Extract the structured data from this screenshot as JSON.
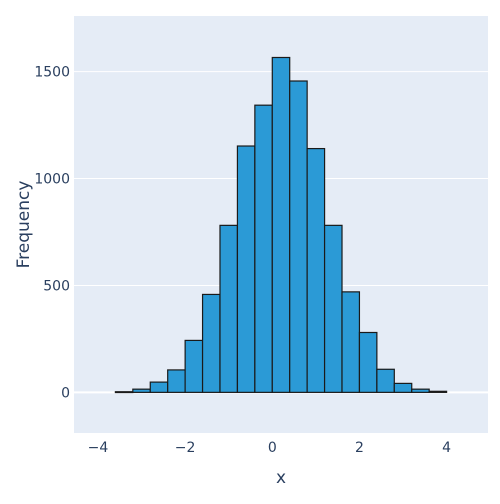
{
  "chart_data": {
    "type": "bar",
    "title": "",
    "xlabel": "x",
    "ylabel": "Frequency",
    "xlim": [
      -4.55,
      4.95
    ],
    "ylim": [
      -190,
      1760
    ],
    "xticks": [
      -4,
      -2,
      0,
      2,
      4
    ],
    "xtick_labels": [
      "−4",
      "−2",
      "0",
      "2",
      "4"
    ],
    "yticks": [
      0,
      500,
      1000,
      1500
    ],
    "ytick_labels": [
      "0",
      "500",
      "1000",
      "1500"
    ],
    "grid": true,
    "legend": "none",
    "bin_width": 0.4,
    "bins": [
      {
        "x0": -3.6,
        "x1": -3.2,
        "count": 3
      },
      {
        "x0": -3.2,
        "x1": -2.8,
        "count": 15
      },
      {
        "x0": -2.8,
        "x1": -2.4,
        "count": 48
      },
      {
        "x0": -2.4,
        "x1": -2.0,
        "count": 105
      },
      {
        "x0": -2.0,
        "x1": -1.6,
        "count": 243
      },
      {
        "x0": -1.6,
        "x1": -1.2,
        "count": 458
      },
      {
        "x0": -1.2,
        "x1": -0.8,
        "count": 781
      },
      {
        "x0": -0.8,
        "x1": -0.4,
        "count": 1152
      },
      {
        "x0": -0.4,
        "x1": 0.0,
        "count": 1343
      },
      {
        "x0": 0.0,
        "x1": 0.4,
        "count": 1566
      },
      {
        "x0": 0.4,
        "x1": 0.8,
        "count": 1456
      },
      {
        "x0": 0.8,
        "x1": 1.2,
        "count": 1140
      },
      {
        "x0": 1.2,
        "x1": 1.6,
        "count": 781
      },
      {
        "x0": 1.6,
        "x1": 2.0,
        "count": 470
      },
      {
        "x0": 2.0,
        "x1": 2.4,
        "count": 280
      },
      {
        "x0": 2.4,
        "x1": 2.8,
        "count": 108
      },
      {
        "x0": 2.8,
        "x1": 3.2,
        "count": 42
      },
      {
        "x0": 3.2,
        "x1": 3.6,
        "count": 15
      },
      {
        "x0": 3.6,
        "x1": 4.0,
        "count": 5
      }
    ],
    "colors": {
      "bar_fill": "#2b9ad6",
      "bar_stroke": "#1a1a1a",
      "plot_bg": "#e5ecf6",
      "grid": "#ffffff",
      "text": "#2a3f5f"
    }
  }
}
